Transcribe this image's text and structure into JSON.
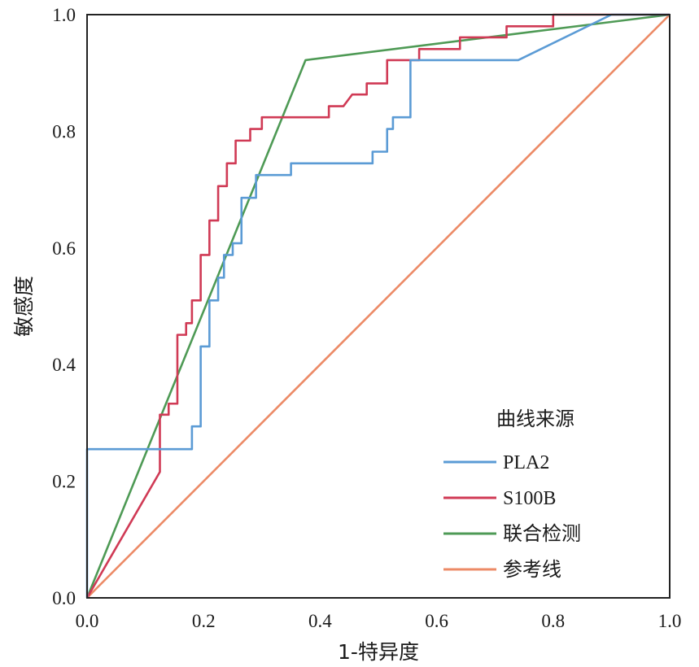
{
  "chart_data": {
    "type": "line",
    "title": "",
    "xlabel": "1-特异度",
    "ylabel": "敏感度",
    "xlim": [
      0.0,
      1.0
    ],
    "ylim": [
      0.0,
      1.0
    ],
    "grid": false,
    "x_ticks": [
      "0.0",
      "0.2",
      "0.4",
      "0.6",
      "0.8",
      "1.0"
    ],
    "y_ticks": [
      "0.0",
      "0.2",
      "0.4",
      "0.6",
      "0.8",
      "1.0"
    ],
    "legend": {
      "title": "曲线来源",
      "position": "bottom-right"
    },
    "series": [
      {
        "name": "PLA2",
        "color": "#5b9bd5",
        "points": [
          [
            0,
            0
          ],
          [
            0,
            0.255
          ],
          [
            0.18,
            0.255
          ],
          [
            0.18,
            0.294
          ],
          [
            0.195,
            0.294
          ],
          [
            0.195,
            0.431
          ],
          [
            0.21,
            0.431
          ],
          [
            0.21,
            0.51
          ],
          [
            0.225,
            0.51
          ],
          [
            0.225,
            0.549
          ],
          [
            0.235,
            0.549
          ],
          [
            0.235,
            0.588
          ],
          [
            0.25,
            0.588
          ],
          [
            0.25,
            0.608
          ],
          [
            0.265,
            0.608
          ],
          [
            0.265,
            0.686
          ],
          [
            0.29,
            0.686
          ],
          [
            0.29,
            0.725
          ],
          [
            0.35,
            0.725
          ],
          [
            0.35,
            0.745
          ],
          [
            0.49,
            0.745
          ],
          [
            0.49,
            0.765
          ],
          [
            0.515,
            0.765
          ],
          [
            0.515,
            0.804
          ],
          [
            0.525,
            0.804
          ],
          [
            0.525,
            0.824
          ],
          [
            0.555,
            0.824
          ],
          [
            0.555,
            0.922
          ],
          [
            0.74,
            0.922
          ],
          [
            0.9,
            1.0
          ],
          [
            1.0,
            1.0
          ]
        ]
      },
      {
        "name": "S100B",
        "color": "#d03a55",
        "points": [
          [
            0,
            0
          ],
          [
            0.125,
            0.216
          ],
          [
            0.125,
            0.314
          ],
          [
            0.14,
            0.314
          ],
          [
            0.14,
            0.333
          ],
          [
            0.155,
            0.333
          ],
          [
            0.155,
            0.451
          ],
          [
            0.17,
            0.451
          ],
          [
            0.17,
            0.471
          ],
          [
            0.18,
            0.471
          ],
          [
            0.18,
            0.51
          ],
          [
            0.195,
            0.51
          ],
          [
            0.195,
            0.588
          ],
          [
            0.21,
            0.588
          ],
          [
            0.21,
            0.647
          ],
          [
            0.225,
            0.647
          ],
          [
            0.225,
            0.706
          ],
          [
            0.24,
            0.706
          ],
          [
            0.24,
            0.745
          ],
          [
            0.255,
            0.745
          ],
          [
            0.255,
            0.784
          ],
          [
            0.28,
            0.784
          ],
          [
            0.28,
            0.804
          ],
          [
            0.3,
            0.804
          ],
          [
            0.3,
            0.824
          ],
          [
            0.415,
            0.824
          ],
          [
            0.415,
            0.843
          ],
          [
            0.44,
            0.843
          ],
          [
            0.455,
            0.863
          ],
          [
            0.48,
            0.863
          ],
          [
            0.48,
            0.882
          ],
          [
            0.515,
            0.882
          ],
          [
            0.515,
            0.922
          ],
          [
            0.57,
            0.922
          ],
          [
            0.57,
            0.941
          ],
          [
            0.64,
            0.941
          ],
          [
            0.64,
            0.961
          ],
          [
            0.72,
            0.961
          ],
          [
            0.72,
            0.98
          ],
          [
            0.8,
            0.98
          ],
          [
            0.8,
            1.0
          ],
          [
            1.0,
            1.0
          ]
        ]
      },
      {
        "name": "联合检测",
        "color": "#4e9a55",
        "points": [
          [
            0,
            0
          ],
          [
            0.375,
            0.922
          ],
          [
            1.0,
            1.0
          ]
        ]
      },
      {
        "name": "参考线",
        "color": "#ec8a66",
        "points": [
          [
            0,
            0
          ],
          [
            1.0,
            1.0
          ]
        ]
      }
    ]
  }
}
